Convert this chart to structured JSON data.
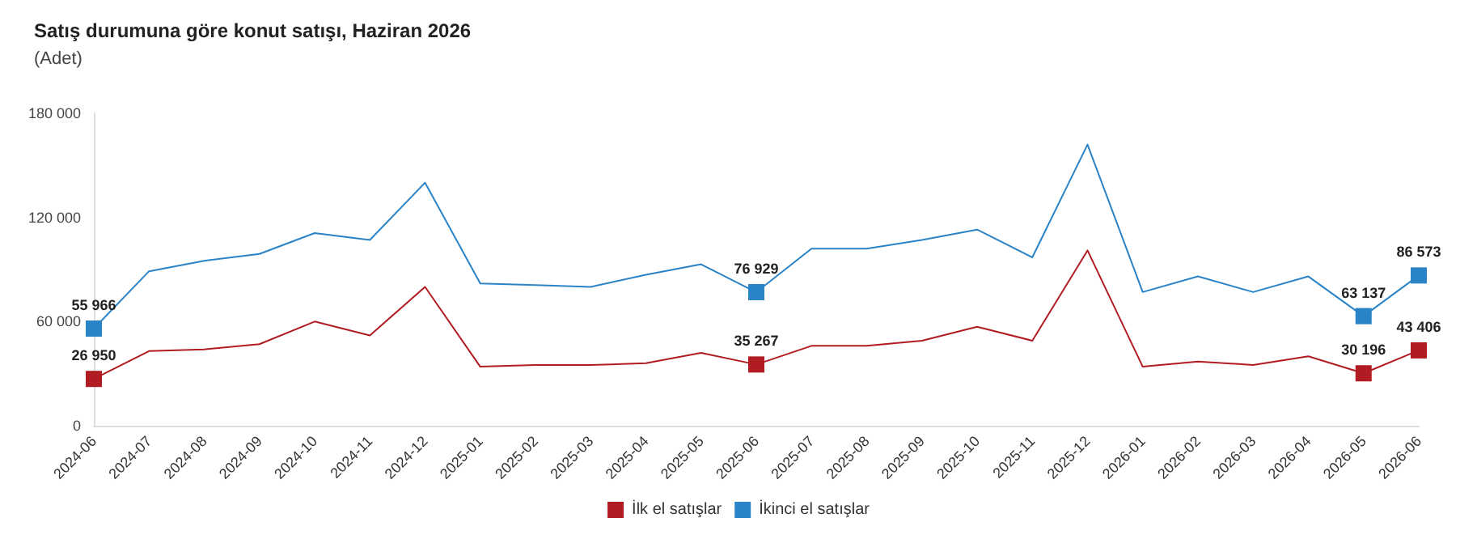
{
  "chart_data": {
    "type": "line",
    "title": "Satış durumuna göre konut satışı, Haziran 2026",
    "subtitle": "(Adet)",
    "categories": [
      "2024-06",
      "2024-07",
      "2024-08",
      "2024-09",
      "2024-10",
      "2024-11",
      "2024-12",
      "2025-01",
      "2025-02",
      "2025-03",
      "2025-04",
      "2025-05",
      "2025-06",
      "2025-07",
      "2025-08",
      "2025-09",
      "2025-10",
      "2025-11",
      "2025-12",
      "2026-01",
      "2026-02",
      "2026-03",
      "2026-04",
      "2026-05",
      "2026-06"
    ],
    "series": [
      {
        "name": "İlk el satışlar",
        "color": "#b01c22",
        "values": [
          26950,
          43000,
          44000,
          47000,
          60000,
          52000,
          80000,
          34000,
          35000,
          35000,
          36000,
          42000,
          35267,
          46000,
          46000,
          49000,
          57000,
          49000,
          101000,
          34000,
          37000,
          35000,
          40000,
          30196,
          43406
        ]
      },
      {
        "name": "İkinci el satışlar",
        "color": "#2a83c6",
        "values": [
          55966,
          89000,
          95000,
          99000,
          111000,
          107000,
          140000,
          82000,
          81000,
          80000,
          87000,
          93000,
          76929,
          102000,
          102000,
          107000,
          113000,
          97000,
          162000,
          77000,
          86000,
          77000,
          86000,
          63137,
          86573
        ]
      },
      {
        "type": "scatter",
        "color": "#b01c22",
        "marker": "square",
        "values": [
          26950,
          null,
          null,
          null,
          null,
          null,
          null,
          null,
          null,
          null,
          null,
          null,
          35267,
          null,
          null,
          null,
          null,
          null,
          null,
          null,
          null,
          null,
          null,
          30196,
          43406
        ],
        "value_labels": [
          "26 950",
          null,
          null,
          null,
          null,
          null,
          null,
          null,
          null,
          null,
          null,
          null,
          "35 267",
          null,
          null,
          null,
          null,
          null,
          null,
          null,
          null,
          null,
          null,
          "30 196",
          "43 406"
        ]
      },
      {
        "type": "scatter",
        "color": "#2a83c6",
        "marker": "square",
        "values": [
          55966,
          null,
          null,
          null,
          null,
          null,
          null,
          null,
          null,
          null,
          null,
          null,
          76929,
          null,
          null,
          null,
          null,
          null,
          null,
          null,
          null,
          null,
          null,
          63137,
          86573
        ],
        "value_labels": [
          "55 966",
          null,
          null,
          null,
          null,
          null,
          null,
          null,
          null,
          null,
          null,
          null,
          "76 929",
          null,
          null,
          null,
          null,
          null,
          null,
          null,
          null,
          null,
          null,
          "63 137",
          "86 573"
        ]
      }
    ],
    "ylim": [
      0,
      180000
    ],
    "yticks": [
      {
        "value": 0,
        "label": "0"
      },
      {
        "value": 60000,
        "label": "60 000"
      },
      {
        "value": 120000,
        "label": "120 000"
      },
      {
        "value": 180000,
        "label": "180 000"
      }
    ],
    "grid": false,
    "legend": "bottom",
    "line_style": "solid"
  }
}
